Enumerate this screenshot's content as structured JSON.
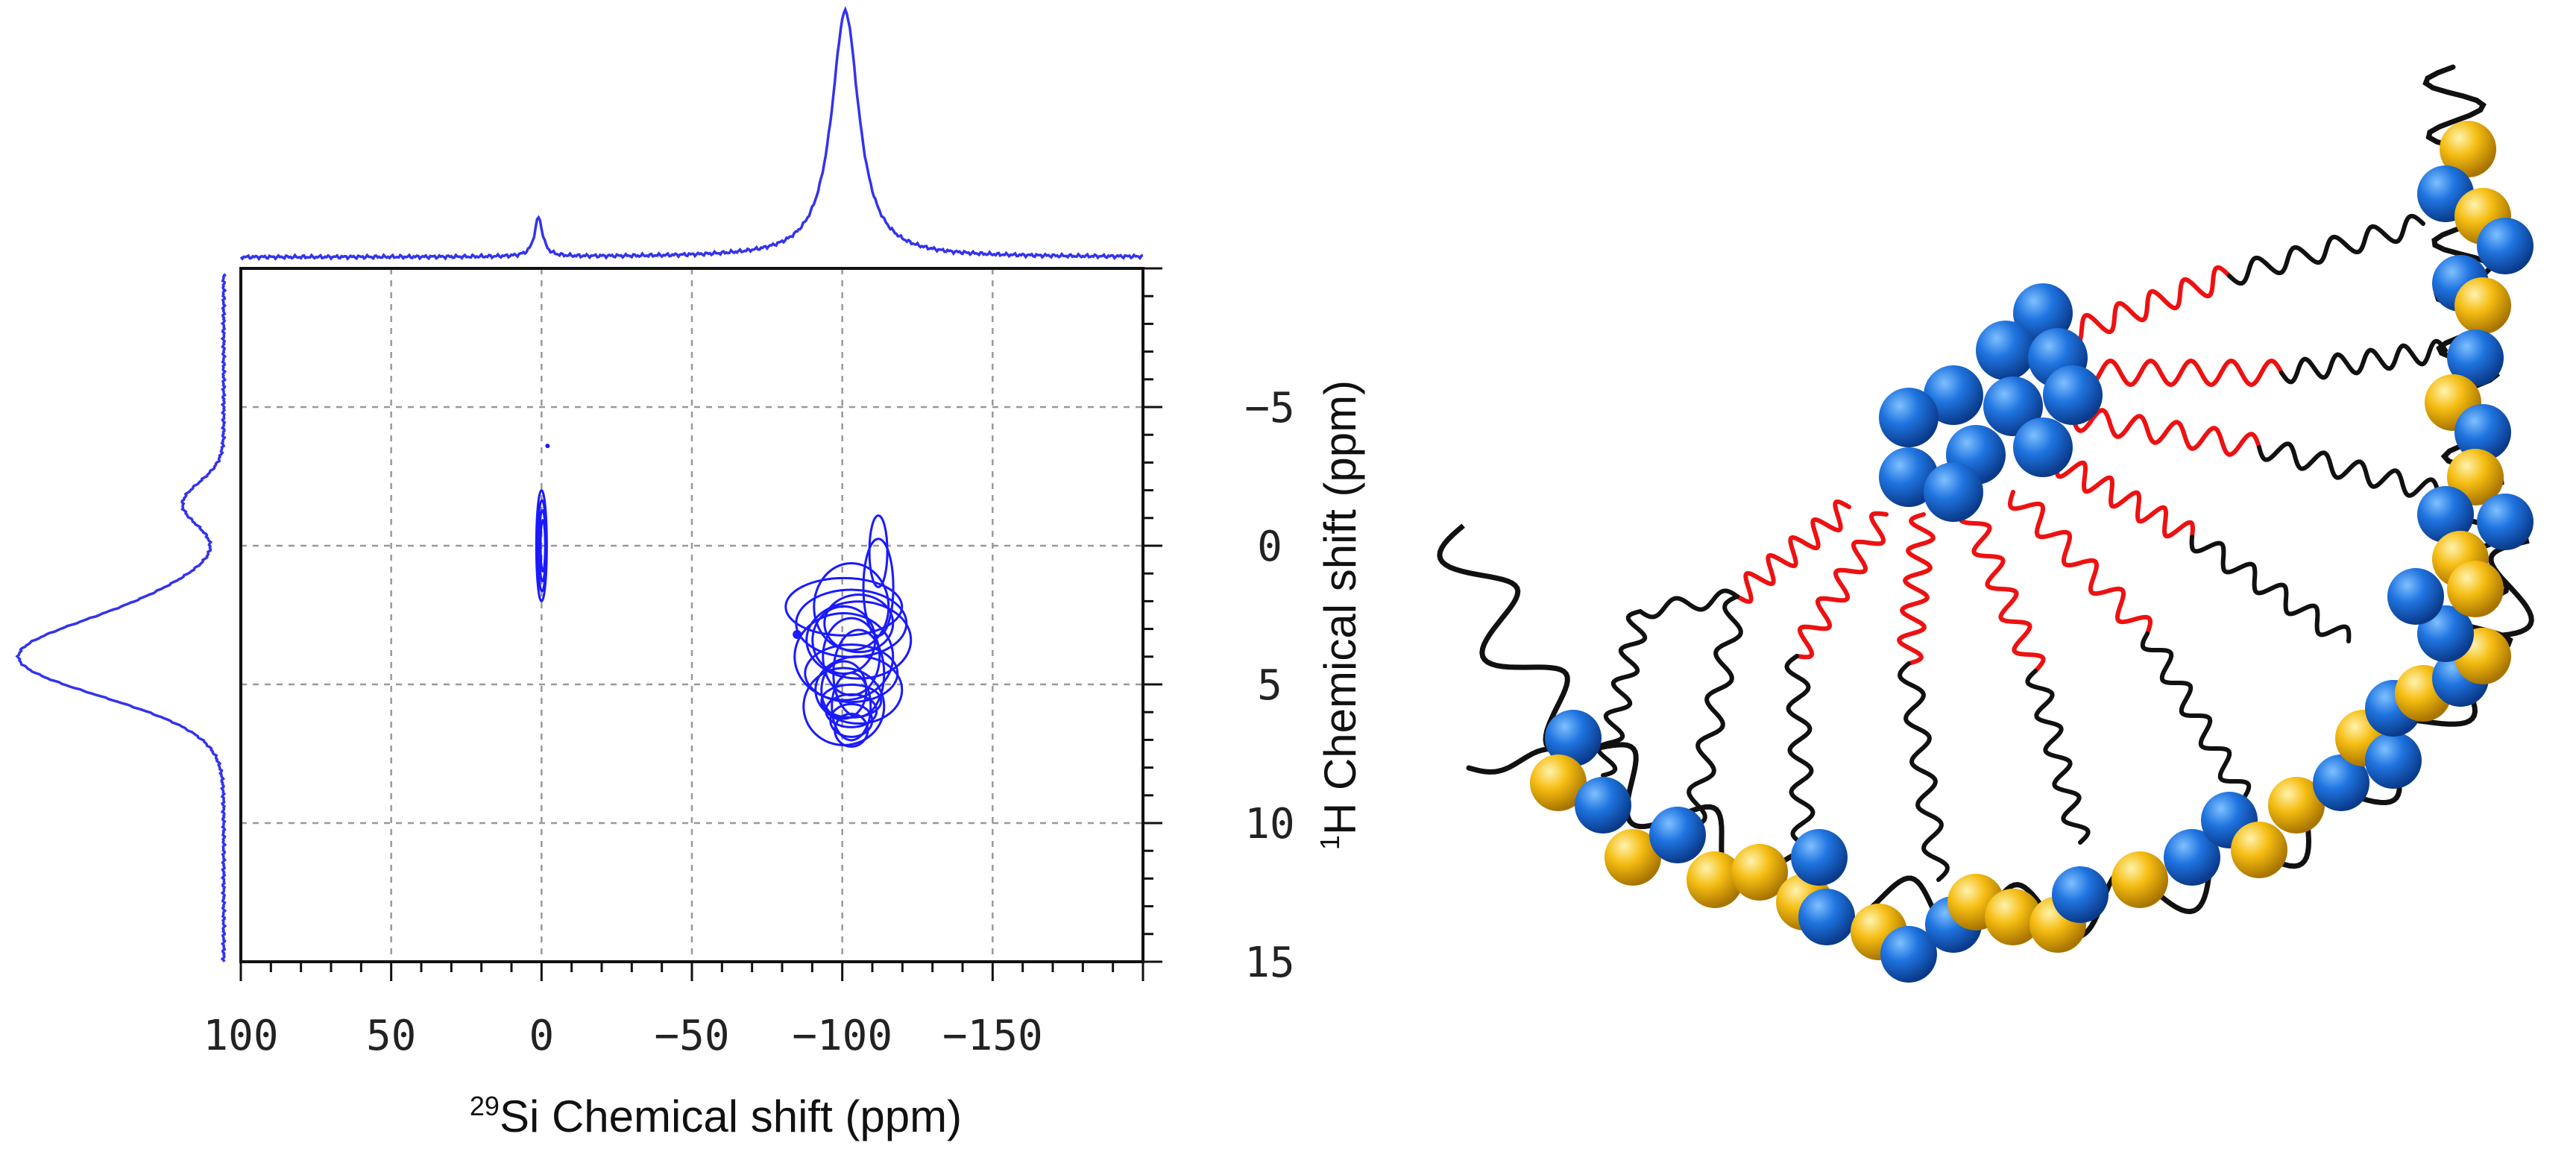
{
  "chart_data": {
    "type": "2D NMR contour plot with 1D projections",
    "title": "",
    "x_axis": {
      "nucleus_superscript": "29",
      "label": "Si Chemical shift (ppm)",
      "range": [
        100,
        -200
      ],
      "ticks": [
        100,
        50,
        0,
        -50,
        -100,
        -150
      ],
      "tick_labels": [
        "100",
        "50",
        "0",
        "−50",
        "−100",
        "−150"
      ],
      "reversed": true
    },
    "y_axis": {
      "nucleus_superscript": "1",
      "label": "H Chemical shift (ppm)",
      "range": [
        -10,
        15
      ],
      "ticks": [
        -5,
        0,
        5,
        10,
        15
      ],
      "tick_labels": [
        "−5",
        "0",
        "5",
        "10",
        "15"
      ],
      "reversed": true,
      "side": "right"
    },
    "grid": true,
    "projections": {
      "top_29Si": {
        "peaks": [
          {
            "position_ppm": 1,
            "relative_height": 0.16
          },
          {
            "position_ppm": -101,
            "relative_height": 1.0
          }
        ]
      },
      "left_1H": {
        "peaks": [
          {
            "position_ppm": 4,
            "relative_height": 1.0
          },
          {
            "position_ppm": -1.5,
            "relative_height": 0.2
          }
        ]
      }
    },
    "correlations": [
      {
        "si_ppm": 0,
        "h_ppm_range": [
          -2,
          2
        ],
        "label": "narrow correlation near 0 ppm"
      },
      {
        "si_ppm": -103,
        "h_ppm_range": [
          -1,
          7
        ],
        "label": "main correlation near -103 ppm"
      },
      {
        "si_ppm": -85,
        "h_ppm_range": [
          3,
          3.4
        ],
        "label": "small spot"
      },
      {
        "si_ppm": -2,
        "h_ppm_range": [
          -3.8,
          -3.4
        ],
        "label": "small dot"
      }
    ],
    "colors": {
      "contour": "#1a1aff",
      "projection": "#3333ee",
      "grid": "#999999",
      "axis": "#111111"
    }
  },
  "illustration": {
    "description_name": "molecular-assembly",
    "colors": {
      "blue_bead": "#1565d8",
      "yellow_bead": "#f2b40a",
      "red_chain": "#ee1111",
      "black_chain": "#111111"
    }
  }
}
